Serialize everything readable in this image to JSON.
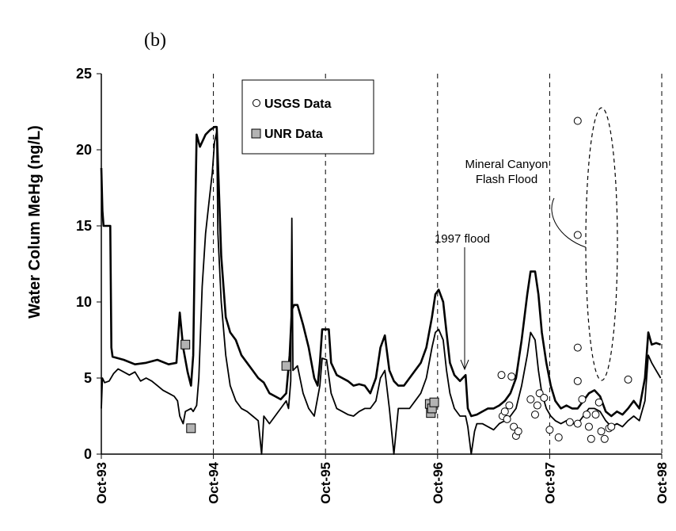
{
  "panel_label": "(b)",
  "chart_data": {
    "type": "line",
    "title": "",
    "xlabel": "",
    "ylabel": "Water Colum MeHg (ng/L)",
    "ylim": [
      0,
      25
    ],
    "y_ticks": [
      0,
      5,
      10,
      15,
      20,
      25
    ],
    "x_range": [
      "1993-10",
      "1998-10"
    ],
    "x_ticks": [
      "Oct-93",
      "Oct-94",
      "Oct-95",
      "Oct-96",
      "Oct-97",
      "Oct-98"
    ],
    "grid": "vertical dashed at year ticks",
    "legend": {
      "placement": "top-left",
      "entries": [
        "USGS Data",
        "UNR Data"
      ]
    },
    "series": [
      {
        "style": "thick line",
        "points": [
          [
            1993.75,
            18.8
          ],
          [
            1993.76,
            16.0
          ],
          [
            1993.77,
            15.0
          ],
          [
            1993.83,
            15.0
          ],
          [
            1993.84,
            7.0
          ],
          [
            1993.85,
            6.4
          ],
          [
            1993.95,
            6.2
          ],
          [
            1994.05,
            5.9
          ],
          [
            1994.15,
            6.0
          ],
          [
            1994.25,
            6.2
          ],
          [
            1994.35,
            5.9
          ],
          [
            1994.42,
            6.0
          ],
          [
            1994.45,
            9.3
          ],
          [
            1994.48,
            7.0
          ],
          [
            1994.52,
            5.4
          ],
          [
            1994.55,
            4.5
          ],
          [
            1994.57,
            6.5
          ],
          [
            1994.59,
            16.5
          ],
          [
            1994.6,
            21.0
          ],
          [
            1994.63,
            20.2
          ],
          [
            1994.68,
            21.0
          ],
          [
            1994.72,
            21.3
          ],
          [
            1994.76,
            21.5
          ],
          [
            1994.78,
            21.5
          ],
          [
            1994.82,
            13.0
          ],
          [
            1994.86,
            9.0
          ],
          [
            1994.9,
            8.0
          ],
          [
            1994.95,
            7.5
          ],
          [
            1995.0,
            6.5
          ],
          [
            1995.05,
            6.0
          ],
          [
            1995.1,
            5.5
          ],
          [
            1995.15,
            5.0
          ],
          [
            1995.2,
            4.7
          ],
          [
            1995.25,
            4.0
          ],
          [
            1995.3,
            3.8
          ],
          [
            1995.35,
            3.6
          ],
          [
            1995.4,
            4.0
          ],
          [
            1995.43,
            6.5
          ],
          [
            1995.45,
            9.5
          ],
          [
            1995.47,
            9.8
          ],
          [
            1995.5,
            9.8
          ],
          [
            1995.55,
            8.5
          ],
          [
            1995.6,
            7.0
          ],
          [
            1995.65,
            5.0
          ],
          [
            1995.68,
            4.5
          ],
          [
            1995.7,
            6.0
          ],
          [
            1995.72,
            8.2
          ],
          [
            1995.78,
            8.2
          ],
          [
            1995.8,
            6.0
          ],
          [
            1995.85,
            5.2
          ],
          [
            1995.9,
            5.0
          ],
          [
            1995.95,
            4.8
          ],
          [
            1996.0,
            4.5
          ],
          [
            1996.05,
            4.6
          ],
          [
            1996.1,
            4.5
          ],
          [
            1996.15,
            4.0
          ],
          [
            1996.2,
            5.0
          ],
          [
            1996.24,
            7.0
          ],
          [
            1996.28,
            7.8
          ],
          [
            1996.32,
            5.5
          ],
          [
            1996.36,
            4.8
          ],
          [
            1996.4,
            4.5
          ],
          [
            1996.45,
            4.5
          ],
          [
            1996.5,
            5.0
          ],
          [
            1996.55,
            5.5
          ],
          [
            1996.6,
            6.0
          ],
          [
            1996.65,
            7.0
          ],
          [
            1996.7,
            9.0
          ],
          [
            1996.73,
            10.5
          ],
          [
            1996.76,
            10.8
          ],
          [
            1996.8,
            10.0
          ],
          [
            1996.83,
            8.0
          ],
          [
            1996.86,
            6.0
          ],
          [
            1996.9,
            5.2
          ],
          [
            1996.95,
            4.8
          ],
          [
            1997.0,
            5.2
          ],
          [
            1997.02,
            3.0
          ],
          [
            1997.05,
            2.5
          ],
          [
            1997.1,
            2.6
          ],
          [
            1997.15,
            2.8
          ],
          [
            1997.2,
            3.0
          ],
          [
            1997.25,
            3.0
          ],
          [
            1997.3,
            3.2
          ],
          [
            1997.35,
            3.5
          ],
          [
            1997.4,
            4.0
          ],
          [
            1997.45,
            5.0
          ],
          [
            1997.5,
            7.5
          ],
          [
            1997.55,
            10.5
          ],
          [
            1997.58,
            12.0
          ],
          [
            1997.62,
            12.0
          ],
          [
            1997.65,
            10.5
          ],
          [
            1997.68,
            8.0
          ],
          [
            1997.72,
            6.0
          ],
          [
            1997.76,
            4.5
          ],
          [
            1997.8,
            3.5
          ],
          [
            1997.85,
            3.0
          ],
          [
            1997.9,
            3.2
          ],
          [
            1997.95,
            3.0
          ],
          [
            1998.0,
            3.0
          ],
          [
            1998.05,
            3.5
          ],
          [
            1998.1,
            4.0
          ],
          [
            1998.15,
            4.2
          ],
          [
            1998.2,
            3.8
          ],
          [
            1998.25,
            2.8
          ],
          [
            1998.3,
            2.5
          ],
          [
            1998.35,
            2.8
          ],
          [
            1998.4,
            2.6
          ],
          [
            1998.45,
            3.0
          ],
          [
            1998.5,
            3.5
          ],
          [
            1998.55,
            3.0
          ],
          [
            1998.6,
            5.0
          ],
          [
            1998.63,
            8.0
          ],
          [
            1998.66,
            7.2
          ],
          [
            1998.7,
            7.3
          ],
          [
            1998.74,
            7.2
          ]
        ]
      },
      {
        "style": "thin line",
        "points": [
          [
            1993.75,
            3.0
          ],
          [
            1993.76,
            5.0
          ],
          [
            1993.78,
            4.7
          ],
          [
            1993.82,
            4.8
          ],
          [
            1993.86,
            5.3
          ],
          [
            1993.9,
            5.6
          ],
          [
            1993.95,
            5.4
          ],
          [
            1994.0,
            5.2
          ],
          [
            1994.05,
            5.4
          ],
          [
            1994.1,
            4.8
          ],
          [
            1994.15,
            5.0
          ],
          [
            1994.2,
            4.8
          ],
          [
            1994.25,
            4.5
          ],
          [
            1994.3,
            4.2
          ],
          [
            1994.35,
            4.0
          ],
          [
            1994.4,
            3.8
          ],
          [
            1994.43,
            3.5
          ],
          [
            1994.45,
            2.5
          ],
          [
            1994.48,
            2.0
          ],
          [
            1994.5,
            2.8
          ],
          [
            1994.55,
            3.0
          ],
          [
            1994.57,
            2.8
          ],
          [
            1994.6,
            3.2
          ],
          [
            1994.62,
            5.0
          ],
          [
            1994.65,
            11.0
          ],
          [
            1994.68,
            14.5
          ],
          [
            1994.71,
            16.5
          ],
          [
            1994.74,
            18.5
          ],
          [
            1994.76,
            20.5
          ],
          [
            1994.78,
            21.2
          ],
          [
            1994.79,
            14.5
          ],
          [
            1994.82,
            10.0
          ],
          [
            1994.86,
            6.5
          ],
          [
            1994.9,
            4.5
          ],
          [
            1994.95,
            3.5
          ],
          [
            1995.0,
            3.0
          ],
          [
            1995.05,
            2.8
          ],
          [
            1995.1,
            2.5
          ],
          [
            1995.15,
            2.2
          ],
          [
            1995.18,
            0.0
          ],
          [
            1995.2,
            2.5
          ],
          [
            1995.25,
            2.0
          ],
          [
            1995.3,
            2.5
          ],
          [
            1995.35,
            3.0
          ],
          [
            1995.4,
            3.5
          ],
          [
            1995.42,
            3.0
          ],
          [
            1995.44,
            4.8
          ],
          [
            1995.45,
            15.5
          ],
          [
            1995.46,
            5.5
          ],
          [
            1995.5,
            5.8
          ],
          [
            1995.55,
            4.0
          ],
          [
            1995.6,
            3.0
          ],
          [
            1995.65,
            2.5
          ],
          [
            1995.7,
            4.5
          ],
          [
            1995.72,
            6.3
          ],
          [
            1995.76,
            6.2
          ],
          [
            1995.8,
            4.0
          ],
          [
            1995.85,
            3.0
          ],
          [
            1995.9,
            2.8
          ],
          [
            1995.95,
            2.6
          ],
          [
            1996.0,
            2.5
          ],
          [
            1996.05,
            2.8
          ],
          [
            1996.1,
            3.0
          ],
          [
            1996.15,
            3.0
          ],
          [
            1996.2,
            3.5
          ],
          [
            1996.24,
            5.0
          ],
          [
            1996.28,
            5.5
          ],
          [
            1996.32,
            3.0
          ],
          [
            1996.36,
            0.0
          ],
          [
            1996.4,
            3.0
          ],
          [
            1996.45,
            3.0
          ],
          [
            1996.5,
            3.0
          ],
          [
            1996.55,
            3.5
          ],
          [
            1996.6,
            4.0
          ],
          [
            1996.65,
            5.0
          ],
          [
            1996.7,
            7.0
          ],
          [
            1996.73,
            8.0
          ],
          [
            1996.76,
            8.2
          ],
          [
            1996.8,
            7.5
          ],
          [
            1996.83,
            5.5
          ],
          [
            1996.86,
            4.0
          ],
          [
            1996.9,
            3.0
          ],
          [
            1996.95,
            2.5
          ],
          [
            1997.0,
            2.5
          ],
          [
            1997.02,
            1.8
          ],
          [
            1997.05,
            0.0
          ],
          [
            1997.08,
            1.5
          ],
          [
            1997.1,
            2.0
          ],
          [
            1997.15,
            2.0
          ],
          [
            1997.2,
            1.8
          ],
          [
            1997.25,
            1.6
          ],
          [
            1997.3,
            2.0
          ],
          [
            1997.35,
            2.2
          ],
          [
            1997.4,
            2.5
          ],
          [
            1997.45,
            3.0
          ],
          [
            1997.5,
            4.5
          ],
          [
            1997.55,
            6.5
          ],
          [
            1997.58,
            8.0
          ],
          [
            1997.62,
            7.5
          ],
          [
            1997.65,
            5.5
          ],
          [
            1997.68,
            4.0
          ],
          [
            1997.72,
            3.0
          ],
          [
            1997.76,
            2.5
          ],
          [
            1997.8,
            2.2
          ],
          [
            1997.85,
            2.0
          ],
          [
            1997.9,
            2.2
          ],
          [
            1997.95,
            2.0
          ],
          [
            1998.0,
            2.0
          ],
          [
            1998.05,
            2.5
          ],
          [
            1998.1,
            3.0
          ],
          [
            1998.15,
            3.0
          ],
          [
            1998.2,
            2.8
          ],
          [
            1998.25,
            2.2
          ],
          [
            1998.3,
            1.8
          ],
          [
            1998.35,
            2.0
          ],
          [
            1998.4,
            1.8
          ],
          [
            1998.45,
            2.2
          ],
          [
            1998.5,
            2.5
          ],
          [
            1998.55,
            2.2
          ],
          [
            1998.6,
            3.5
          ],
          [
            1998.63,
            6.5
          ],
          [
            1998.66,
            6.0
          ],
          [
            1998.7,
            5.5
          ],
          [
            1998.74,
            5.0
          ]
        ]
      }
    ],
    "scatter": [
      {
        "name": "USGS Data",
        "marker": "open-circle",
        "points": [
          [
            1997.32,
            5.2
          ],
          [
            1997.33,
            2.5
          ],
          [
            1997.35,
            2.8
          ],
          [
            1997.37,
            2.3
          ],
          [
            1997.39,
            3.2
          ],
          [
            1997.41,
            5.1
          ],
          [
            1997.43,
            1.8
          ],
          [
            1997.45,
            1.2
          ],
          [
            1997.47,
            1.5
          ],
          [
            1997.58,
            3.6
          ],
          [
            1997.62,
            2.6
          ],
          [
            1997.64,
            3.2
          ],
          [
            1997.66,
            4.0
          ],
          [
            1997.7,
            3.7
          ],
          [
            1997.75,
            1.6
          ],
          [
            1997.83,
            1.1
          ],
          [
            1997.93,
            2.1
          ],
          [
            1998.0,
            2.0
          ],
          [
            1998.04,
            3.6
          ],
          [
            1998.08,
            2.6
          ],
          [
            1998.1,
            1.8
          ],
          [
            1998.12,
            1.0
          ],
          [
            1998.16,
            2.6
          ],
          [
            1998.19,
            3.4
          ],
          [
            1998.21,
            1.5
          ],
          [
            1998.24,
            1.0
          ],
          [
            1998.28,
            1.7
          ],
          [
            1998.3,
            1.8
          ],
          [
            1998.45,
            4.9
          ],
          [
            1998.0,
            4.8
          ],
          [
            1998.0,
            7.0
          ],
          [
            1998.0,
            14.4
          ],
          [
            1998.0,
            21.9
          ]
        ]
      },
      {
        "name": "UNR Data",
        "marker": "gray-square",
        "points": [
          [
            1994.5,
            7.2
          ],
          [
            1994.55,
            1.7
          ],
          [
            1995.4,
            5.8
          ],
          [
            1996.68,
            3.3
          ],
          [
            1996.69,
            2.7
          ],
          [
            1996.7,
            3.0
          ],
          [
            1996.72,
            3.4
          ]
        ]
      }
    ],
    "annotations": [
      {
        "text_lines": [
          "Mineral Canyon",
          "Flash Flood"
        ],
        "target": "dashed ellipse around Oct-97 to Oct-98 USGS samples"
      },
      {
        "text_lines": [
          "1997 flood"
        ],
        "target": "arrow pointing down near Jan-97"
      }
    ]
  }
}
